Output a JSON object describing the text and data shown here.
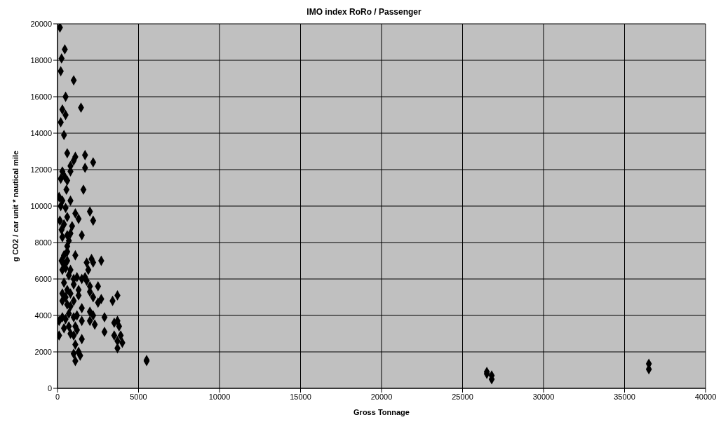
{
  "chart_data": {
    "type": "scatter",
    "title": "IMO index RoRo / Passenger",
    "xlabel": "Gross Tonnage",
    "ylabel": "g CO2 / car unit * nautical mile",
    "x": [
      150,
      250,
      450,
      200,
      1000,
      500,
      1450,
      300,
      500,
      200,
      400,
      600,
      1100,
      1700,
      1000,
      2200,
      800,
      300,
      800,
      450,
      200,
      600,
      1700,
      1600,
      550,
      100,
      300,
      800,
      200,
      500,
      2000,
      1100,
      1300,
      600,
      2200,
      150,
      400,
      900,
      250,
      800,
      600,
      1500,
      300,
      700,
      600,
      600,
      400,
      1100,
      600,
      250,
      400,
      1800,
      2700,
      2100,
      2200,
      500,
      300,
      1900,
      800,
      700,
      1200,
      1500,
      1000,
      1700,
      1800,
      400,
      1000,
      2000,
      2500,
      600,
      1300,
      300,
      2000,
      800,
      1300,
      3700,
      2200,
      2700,
      500,
      300,
      1000,
      3400,
      2500,
      600,
      800,
      1500,
      2000,
      2200,
      700,
      1200,
      300,
      500,
      1000,
      2900,
      100,
      3500,
      1500,
      2000,
      2300,
      3700,
      700,
      1100,
      400,
      1200,
      3800,
      800,
      1000,
      2900,
      100,
      1500,
      3500,
      3900,
      3700,
      4000,
      1100,
      3700,
      1300,
      1000,
      1400,
      1100,
      5500,
      5500,
      26500,
      26500,
      26800,
      26800,
      36500,
      36500
    ],
    "values": [
      19800,
      18100,
      18600,
      17400,
      16900,
      16000,
      15400,
      15300,
      15000,
      14600,
      13900,
      12900,
      12700,
      12800,
      12500,
      12400,
      12200,
      11900,
      11900,
      11600,
      11500,
      11400,
      12100,
      10900,
      10900,
      10500,
      10300,
      10300,
      10000,
      9900,
      9700,
      9600,
      9300,
      9400,
      9200,
      9200,
      9000,
      8900,
      8700,
      8500,
      8400,
      8400,
      8300,
      8100,
      7800,
      7500,
      7300,
      7300,
      7000,
      7000,
      6800,
      6900,
      7000,
      7100,
      6900,
      6600,
      6500,
      6500,
      6500,
      6200,
      6100,
      6000,
      6000,
      6100,
      5900,
      5800,
      5700,
      5600,
      5600,
      5400,
      5400,
      5200,
      5300,
      5200,
      5100,
      5100,
      5000,
      4900,
      5000,
      4800,
      4800,
      4800,
      4700,
      4600,
      4500,
      4400,
      4200,
      4000,
      4100,
      4000,
      3900,
      3800,
      3900,
      3900,
      3700,
      3600,
      3700,
      3700,
      3500,
      3700,
      3400,
      3400,
      3300,
      3200,
      3400,
      3000,
      2900,
      3100,
      2900,
      2700,
      2900,
      2900,
      2600,
      2500,
      2400,
      2200,
      2000,
      1900,
      1800,
      1500,
      1500,
      1550,
      900,
      800,
      700,
      500,
      1350,
      1050
    ],
    "color": "#000000",
    "marker": "diamond",
    "xlim": [
      0,
      40000
    ],
    "xticks": [
      0,
      5000,
      10000,
      15000,
      20000,
      25000,
      30000,
      35000,
      40000
    ],
    "ylim": [
      0,
      20000
    ],
    "yticks": [
      0,
      2000,
      4000,
      6000,
      8000,
      10000,
      12000,
      14000,
      16000,
      18000,
      20000
    ],
    "grid": true
  }
}
